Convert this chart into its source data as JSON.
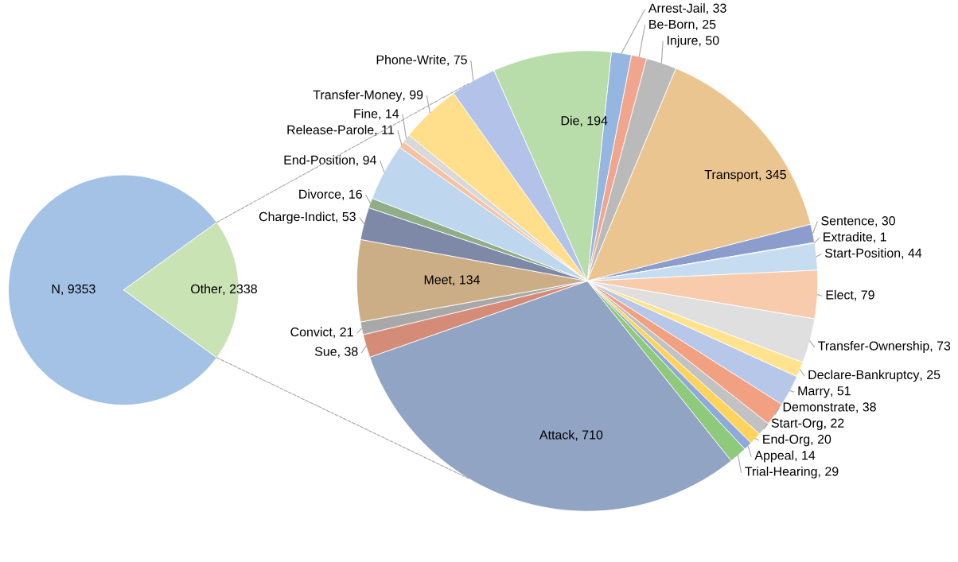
{
  "chart_data": [
    {
      "type": "pie",
      "categories": [
        "N",
        "Other"
      ],
      "values": [
        9353,
        2338
      ],
      "colors": [
        "#a4c2e6",
        "#c9e3b4"
      ],
      "value_labels": [
        ", 9353",
        ", 2338"
      ]
    },
    {
      "type": "pie",
      "categories": [
        "Arrest-Jail",
        "Be-Born",
        "Injure",
        "Transport",
        "Sentence",
        "Extradite",
        "Start-Position",
        "Elect",
        "Transfer-Ownership",
        "Declare-Bankruptcy",
        "Marry",
        "Demonstrate",
        "Start-Org",
        "End-Org",
        "Appeal",
        "Trial-Hearing",
        "Attack",
        "Sue",
        "Convict",
        "Meet",
        "Charge-Indict",
        "Divorce",
        "End-Position",
        "Release-Parole",
        "Fine",
        "Transfer-Money",
        "Phone-Write",
        "Die"
      ],
      "values": [
        33,
        25,
        50,
        345,
        30,
        1,
        44,
        79,
        73,
        25,
        51,
        38,
        22,
        20,
        14,
        29,
        710,
        38,
        21,
        134,
        53,
        16,
        94,
        11,
        14,
        99,
        75,
        194
      ],
      "value_labels": [
        ", 33",
        ", 25",
        ", 50",
        ", 345",
        ", 30",
        ", 1",
        ", 44",
        ", 79",
        ", 73",
        ", 25",
        ", 51",
        ", 38",
        ", 22",
        ", 20",
        ", 14",
        ", 29",
        ", 710",
        ", 38",
        ", 21",
        ", 134",
        ", 53",
        ", 16",
        ", 94",
        ", 11",
        ", 14",
        ", 99",
        ", 75",
        ", 194"
      ],
      "colors": [
        "#95b6e0",
        "#f0a58e",
        "#bababa",
        "#ebc590",
        "#8c9ccc",
        "#7fb87a",
        "#c6dcf1",
        "#f9cbad",
        "#dfdfdf",
        "#ffe38f",
        "#b7c7ea",
        "#f2a082",
        "#c2c2c2",
        "#ffd35c",
        "#8ea9db",
        "#8fca7c",
        "#91a4c4",
        "#d48c78",
        "#a8a8a8",
        "#ccae86",
        "#7e89a8",
        "#8fae87",
        "#bed7ee",
        "#f6c2a6",
        "#d9d9d9",
        "#ffdf8c",
        "#b2c2e8",
        "#b8dcaa"
      ]
    }
  ]
}
